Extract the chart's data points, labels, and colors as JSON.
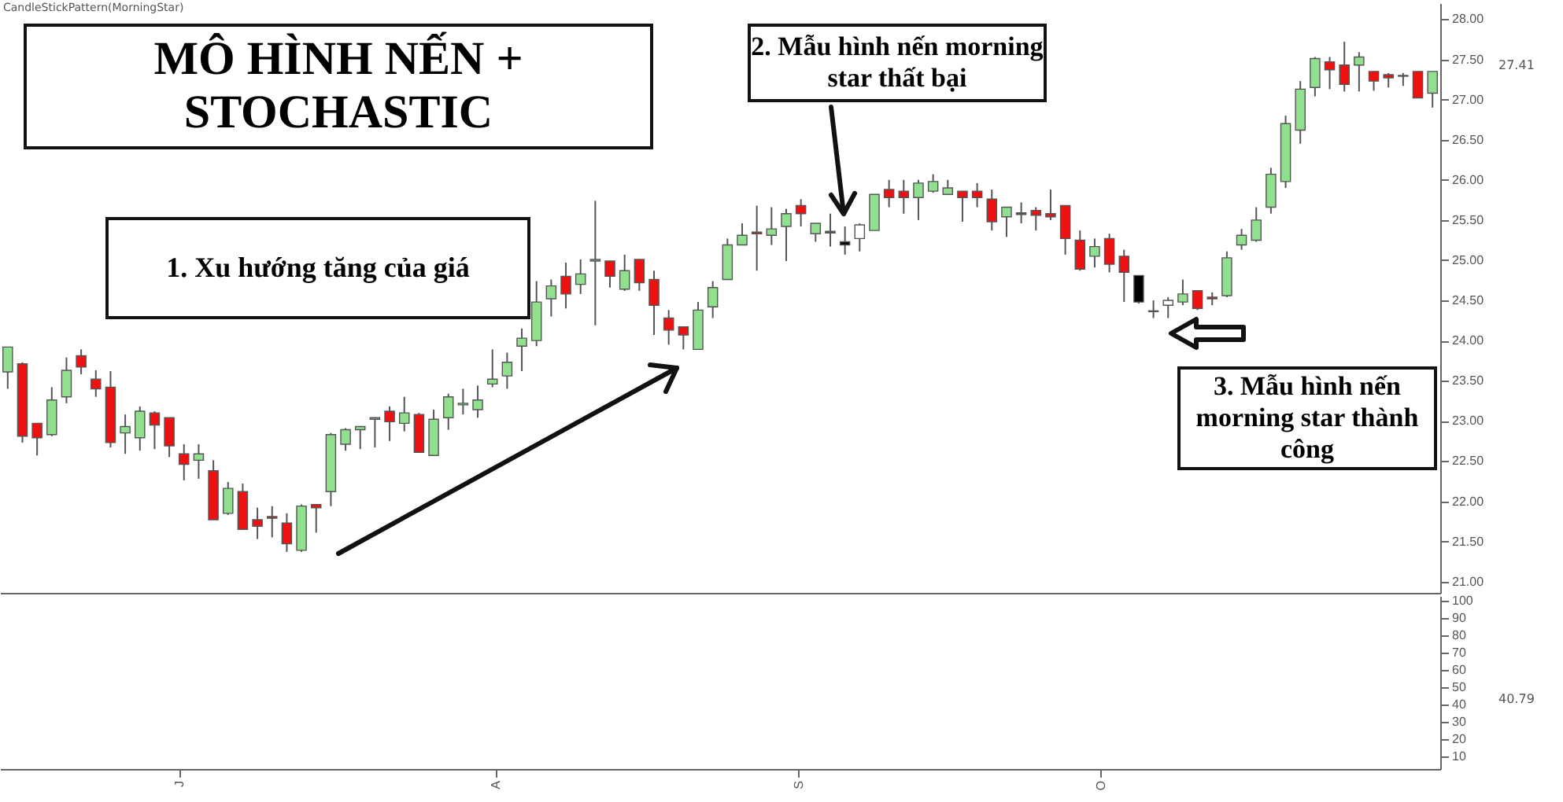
{
  "chart_data": [
    {
      "type": "candlestick",
      "title": "MÔ HÌNH NẾN + STOCHASTIC",
      "tick_labels": "y",
      "annotations": [
        "CandleStickPattern(MorningStar)",
        "1. Xu hướng tăng của giá",
        "2. Mẫu hình nến morning star thất bại",
        "3. Mẫu hình nến morning star thành công",
        "27.41"
      ],
      "categories": [
        null,
        null,
        null,
        null,
        null,
        null,
        null,
        null,
        null,
        null,
        null,
        null,
        null,
        null,
        null,
        null,
        null,
        null,
        null,
        null,
        null,
        null,
        null,
        null,
        null,
        null,
        null,
        null,
        null,
        null,
        null,
        null,
        null,
        null,
        null,
        null,
        null,
        null,
        null,
        null,
        null,
        null,
        null,
        null,
        null,
        null,
        null,
        null,
        null,
        null,
        null,
        null,
        null,
        null,
        null,
        null,
        null,
        null,
        null,
        null,
        null,
        null,
        null,
        null,
        null,
        null,
        null,
        null,
        null,
        null,
        null,
        null,
        null,
        null,
        null,
        null,
        null,
        null,
        null,
        null,
        null,
        null,
        null,
        null,
        null,
        null,
        null,
        null,
        null,
        null,
        null,
        null,
        null,
        null,
        null,
        null,
        null,
        null
      ],
      "ohlc": [
        [
          23.61,
          23.92,
          23.4,
          23.92
        ],
        [
          23.71,
          23.73,
          22.73,
          22.81
        ],
        [
          22.97,
          22.97,
          22.57,
          22.79
        ],
        [
          22.83,
          23.42,
          22.81,
          23.26
        ],
        [
          23.3,
          23.79,
          23.22,
          23.63
        ],
        [
          23.81,
          23.89,
          23.58,
          23.67
        ],
        [
          23.52,
          23.63,
          23.3,
          23.4
        ],
        [
          23.42,
          23.62,
          22.67,
          22.73
        ],
        [
          22.85,
          23.08,
          22.59,
          22.93
        ],
        [
          22.79,
          23.18,
          22.63,
          23.12
        ],
        [
          23.1,
          23.12,
          22.65,
          22.95
        ],
        [
          23.04,
          23.04,
          22.55,
          22.69
        ],
        [
          22.59,
          22.71,
          22.26,
          22.46
        ],
        [
          22.51,
          22.71,
          22.28,
          22.59
        ],
        [
          22.38,
          22.51,
          21.77,
          21.77
        ],
        [
          21.85,
          22.24,
          21.83,
          22.16
        ],
        [
          22.12,
          22.22,
          21.65,
          21.65
        ],
        [
          21.77,
          21.92,
          21.53,
          21.69
        ],
        [
          21.81,
          21.94,
          21.55,
          21.79
        ],
        [
          21.73,
          21.85,
          21.37,
          21.47
        ],
        [
          21.39,
          21.96,
          21.37,
          21.94
        ],
        [
          21.96,
          21.96,
          21.61,
          21.92
        ],
        [
          22.12,
          22.85,
          21.94,
          22.83
        ],
        [
          22.71,
          22.91,
          22.63,
          22.89
        ],
        [
          22.89,
          22.93,
          22.65,
          22.93
        ],
        [
          23.02,
          23.04,
          22.67,
          23.04
        ],
        [
          23.12,
          23.18,
          22.75,
          22.99
        ],
        [
          22.97,
          23.3,
          22.87,
          23.1
        ],
        [
          23.08,
          23.1,
          22.61,
          22.61
        ],
        [
          22.57,
          23.14,
          22.57,
          23.02
        ],
        [
          23.04,
          23.34,
          22.89,
          23.3
        ],
        [
          23.2,
          23.4,
          23.08,
          23.22
        ],
        [
          23.14,
          23.44,
          23.04,
          23.26
        ],
        [
          23.46,
          23.89,
          23.42,
          23.52
        ],
        [
          23.56,
          23.85,
          23.4,
          23.73
        ],
        [
          23.93,
          24.15,
          23.62,
          24.03
        ],
        [
          24.0,
          24.74,
          23.93,
          24.48
        ],
        [
          24.52,
          24.76,
          24.3,
          24.68
        ],
        [
          24.8,
          24.97,
          24.4,
          24.58
        ],
        [
          24.7,
          25.01,
          24.58,
          24.83
        ],
        [
          24.99,
          25.74,
          24.19,
          25.01
        ],
        [
          24.99,
          24.99,
          24.66,
          24.8
        ],
        [
          24.64,
          25.07,
          24.62,
          24.87
        ],
        [
          25.01,
          25.01,
          24.62,
          24.72
        ],
        [
          24.76,
          24.87,
          24.07,
          24.44
        ],
        [
          24.28,
          24.38,
          23.95,
          24.13
        ],
        [
          24.17,
          24.17,
          23.89,
          24.07
        ],
        [
          23.89,
          24.48,
          23.89,
          24.38
        ],
        [
          24.42,
          24.74,
          24.28,
          24.66
        ],
        [
          24.76,
          25.27,
          24.76,
          25.19
        ],
        [
          25.19,
          25.46,
          25.19,
          25.31
        ],
        [
          25.35,
          25.68,
          24.87,
          25.33
        ],
        [
          25.31,
          25.66,
          25.19,
          25.39
        ],
        [
          25.42,
          25.64,
          24.99,
          25.58
        ],
        [
          25.68,
          25.76,
          25.42,
          25.58
        ],
        [
          25.33,
          25.46,
          25.23,
          25.46
        ],
        [
          25.36,
          25.58,
          25.17,
          25.34
        ],
        [
          25.23,
          25.42,
          25.07,
          25.19
        ],
        [
          25.27,
          25.46,
          25.11,
          25.44
        ],
        [
          25.37,
          25.82,
          25.37,
          25.82
        ],
        [
          25.88,
          26.0,
          25.66,
          25.78
        ],
        [
          25.86,
          26.0,
          25.58,
          25.78
        ],
        [
          25.78,
          26.0,
          25.5,
          25.96
        ],
        [
          25.86,
          26.07,
          25.84,
          25.98
        ],
        [
          25.82,
          26.0,
          25.82,
          25.9
        ],
        [
          25.86,
          25.86,
          25.48,
          25.78
        ],
        [
          25.86,
          25.96,
          25.66,
          25.78
        ],
        [
          25.76,
          25.88,
          25.37,
          25.48
        ],
        [
          25.54,
          25.66,
          25.29,
          25.66
        ],
        [
          25.59,
          25.72,
          25.46,
          25.57
        ],
        [
          25.62,
          25.66,
          25.37,
          25.56
        ],
        [
          25.58,
          25.88,
          25.5,
          25.54
        ],
        [
          25.68,
          25.68,
          25.07,
          25.27
        ],
        [
          25.25,
          25.37,
          24.87,
          24.89
        ],
        [
          25.05,
          25.27,
          24.91,
          25.17
        ],
        [
          25.27,
          25.33,
          24.85,
          24.95
        ],
        [
          25.05,
          25.13,
          24.48,
          24.85
        ],
        [
          24.81,
          24.81,
          24.46,
          24.48
        ],
        [
          24.37,
          24.5,
          24.28,
          24.36
        ],
        [
          24.44,
          24.54,
          24.28,
          24.5
        ],
        [
          24.48,
          24.76,
          24.44,
          24.58
        ],
        [
          24.62,
          24.62,
          24.38,
          24.4
        ],
        [
          24.54,
          24.6,
          24.44,
          24.52
        ],
        [
          24.56,
          25.11,
          24.54,
          25.03
        ],
        [
          25.19,
          25.39,
          25.13,
          25.31
        ],
        [
          25.25,
          25.66,
          25.23,
          25.5
        ],
        [
          25.66,
          26.15,
          25.58,
          26.07
        ],
        [
          25.98,
          26.8,
          25.9,
          26.7
        ],
        [
          26.62,
          27.23,
          26.45,
          27.13
        ],
        [
          27.15,
          27.53,
          27.04,
          27.51
        ],
        [
          27.47,
          27.53,
          27.13,
          27.37
        ],
        [
          27.43,
          27.72,
          27.1,
          27.19
        ],
        [
          27.43,
          27.59,
          27.1,
          27.53
        ],
        [
          27.35,
          27.35,
          27.11,
          27.23
        ],
        [
          27.31,
          27.33,
          27.15,
          27.27
        ],
        [
          27.3,
          27.33,
          27.17,
          27.29
        ],
        [
          27.35,
          27.35,
          27.02,
          27.02
        ],
        [
          27.08,
          27.35,
          26.9,
          27.35
        ]
      ],
      "colors": [
        "#90e090",
        "#ee1111",
        "#ee1111",
        "#90e090",
        "#90e090",
        "#ee1111",
        "#ee1111",
        "#ee1111",
        "#90e090",
        "#90e090",
        "#ee1111",
        "#ee1111",
        "#ee1111",
        "#90e090",
        "#ee1111",
        "#90e090",
        "#ee1111",
        "#ee1111",
        "#ee1111",
        "#ee1111",
        "#90e090",
        "#ee1111",
        "#90e090",
        "#90e090",
        "#90e090",
        "#90e090",
        "#ee1111",
        "#90e090",
        "#ee1111",
        "#90e090",
        "#90e090",
        "#90e090",
        "#90e090",
        "#90e090",
        "#90e090",
        "#90e090",
        "#90e090",
        "#90e090",
        "#ee1111",
        "#90e090",
        "#90e090",
        "#ee1111",
        "#90e090",
        "#ee1111",
        "#ee1111",
        "#ee1111",
        "#ee1111",
        "#90e090",
        "#90e090",
        "#90e090",
        "#90e090",
        "#ee1111",
        "#90e090",
        "#90e090",
        "#ee1111",
        "#90e090",
        "#555555",
        "#000000",
        "#ffffff",
        "#90e090",
        "#ee1111",
        "#ee1111",
        "#90e090",
        "#90e090",
        "#90e090",
        "#ee1111",
        "#ee1111",
        "#ee1111",
        "#90e090",
        "#555555",
        "#ee1111",
        "#ee1111",
        "#ee1111",
        "#ee1111",
        "#90e090",
        "#ee1111",
        "#ee1111",
        "#000000",
        "#555555",
        "#ffffff",
        "#90e090",
        "#ee1111",
        "#ee1111",
        "#90e090",
        "#90e090",
        "#90e090",
        "#90e090",
        "#90e090",
        "#90e090",
        "#90e090",
        "#ee1111",
        "#ee1111",
        "#90e090",
        "#ee1111",
        "#ee1111",
        "#aaaaaa",
        "#ee1111",
        "#90e090"
      ],
      "ylim": [
        20.86,
        28.2
      ],
      "yticks": [
        {
          "value": 21,
          "label": "21.00"
        },
        {
          "value": 21.5,
          "label": "21.50"
        },
        {
          "value": 22,
          "label": "22.00"
        },
        {
          "value": 22.5,
          "label": "22.50"
        },
        {
          "value": 23,
          "label": "23.00"
        },
        {
          "value": 23.5,
          "label": "23.50"
        },
        {
          "value": 24,
          "label": "24.00"
        },
        {
          "value": 24.5,
          "label": "24.50"
        },
        {
          "value": 25,
          "label": "25.00"
        },
        {
          "value": 25.5,
          "label": "25.50"
        },
        {
          "value": 26,
          "label": "26.00"
        },
        {
          "value": 26.5,
          "label": "26.50"
        },
        {
          "value": 27,
          "label": "27.00"
        },
        {
          "value": 27.5,
          "label": "27.50"
        },
        {
          "value": 28,
          "label": "28.00"
        }
      ]
    },
    {
      "type": "line",
      "annotations": [
        "40.79"
      ],
      "categories": [
        null,
        null,
        null,
        null,
        null,
        null,
        null,
        null,
        null,
        null,
        null,
        null,
        "J",
        null,
        null,
        null,
        null,
        null,
        null,
        null,
        null,
        null,
        null,
        null,
        null,
        null,
        null,
        null,
        null,
        null,
        null,
        null,
        null,
        null,
        "A",
        null,
        null,
        null,
        null,
        null,
        null,
        null,
        null,
        null,
        null,
        null,
        null,
        null,
        null,
        null,
        null,
        null,
        null,
        null,
        null,
        "S",
        null,
        null,
        null,
        null,
        null,
        null,
        null,
        null,
        null,
        null,
        null,
        null,
        null,
        null,
        null,
        null,
        null,
        null,
        null,
        null,
        "O",
        null,
        null,
        null,
        null,
        null,
        null,
        null,
        null,
        null,
        null,
        null,
        null,
        null,
        null,
        null,
        null,
        null,
        null,
        null,
        null,
        null,
        null,
        null
      ],
      "ylim": [
        2.7,
        102.7
      ],
      "yticks": [
        10,
        20,
        30,
        40,
        50,
        60,
        70,
        80,
        90,
        100
      ]
    }
  ]
}
